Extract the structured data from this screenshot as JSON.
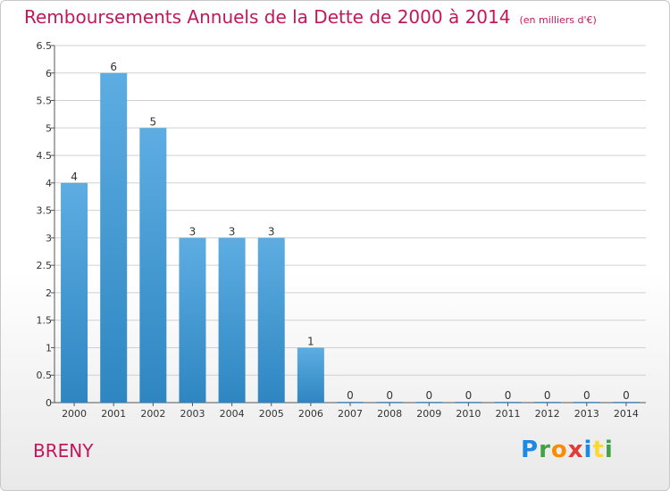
{
  "header": {
    "title": "Remboursements Annuels de la Dette de 2000 à 2014",
    "unit": "(en milliers d'€)"
  },
  "footer": {
    "commune": "BRENY",
    "logo_letters": [
      "P",
      "r",
      "o",
      "x",
      "i",
      "t",
      "i"
    ],
    "logo_colors": [
      "#1e88e5",
      "#43a047",
      "#fb8c00",
      "#e53935",
      "#1e88e5",
      "#fdd835",
      "#43a047"
    ]
  },
  "colors": {
    "bar_top": "#5dade2",
    "bar_bottom": "#2e86c1",
    "grid": "#d0d0d0",
    "title": "#c2185b"
  },
  "chart_data": {
    "type": "bar",
    "title": "Remboursements Annuels de la Dette de 2000 à 2014",
    "xlabel": "",
    "ylabel": "",
    "categories": [
      "2000",
      "2001",
      "2002",
      "2003",
      "2004",
      "2005",
      "2006",
      "2007",
      "2008",
      "2009",
      "2010",
      "2011",
      "2012",
      "2013",
      "2014"
    ],
    "values": [
      4,
      6,
      5,
      3,
      3,
      3,
      1,
      0,
      0,
      0,
      0,
      0,
      0,
      0,
      0
    ],
    "data_labels": [
      "4",
      "6",
      "5",
      "3",
      "3",
      "3",
      "1",
      "0",
      "0",
      "0",
      "0",
      "0",
      "0",
      "0",
      "0"
    ],
    "ylim": [
      0,
      6.5
    ],
    "yticks": [
      "0",
      "0.5",
      "1",
      "1.5",
      "2",
      "2.5",
      "3",
      "3.5",
      "4",
      "4.5",
      "5",
      "5.5",
      "6",
      "6.5"
    ],
    "grid": true,
    "legend": "none"
  }
}
